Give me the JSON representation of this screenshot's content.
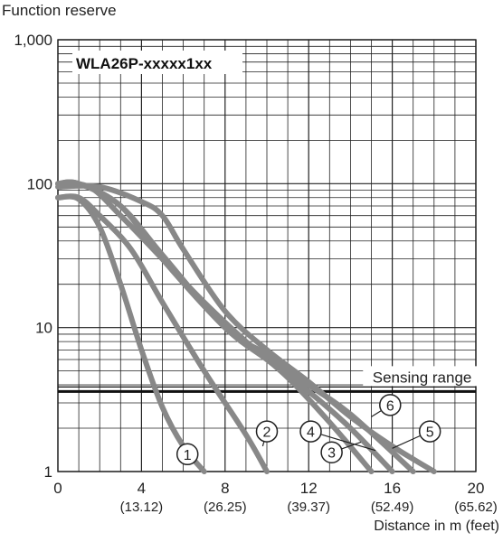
{
  "chart_data": {
    "type": "line",
    "model_label": "WLA26P-xxxxx1xx",
    "ylabel": "Function reserve",
    "xlabel": "Distance in m (feet)",
    "yscale": "log",
    "ylim": [
      1,
      1000
    ],
    "xlim": [
      0,
      20
    ],
    "y_ticks": [
      {
        "value": 1,
        "label": "1"
      },
      {
        "value": 10,
        "label": "10"
      },
      {
        "value": 100,
        "label": "100"
      },
      {
        "value": 1000,
        "label": "1,000"
      }
    ],
    "x_ticks": [
      {
        "value": 0,
        "label": "0",
        "sub": ""
      },
      {
        "value": 4,
        "label": "4",
        "sub": "(13.12)"
      },
      {
        "value": 8,
        "label": "8",
        "sub": "(26.25)"
      },
      {
        "value": 12,
        "label": "12",
        "sub": "(39.37)"
      },
      {
        "value": 16,
        "label": "16",
        "sub": "(52.49)"
      },
      {
        "value": 20,
        "label": "20",
        "sub": "(65.62)"
      }
    ],
    "grid": true,
    "threshold": {
      "label": "Sensing range",
      "value": 3.6
    },
    "series": [
      {
        "name": "1",
        "points": [
          [
            0,
            80
          ],
          [
            1,
            78
          ],
          [
            2,
            50
          ],
          [
            3,
            20
          ],
          [
            4,
            7
          ],
          [
            5,
            2.8
          ],
          [
            6,
            1.5
          ],
          [
            7,
            1
          ]
        ]
      },
      {
        "name": "2",
        "points": [
          [
            0,
            80
          ],
          [
            1,
            80
          ],
          [
            2,
            60
          ],
          [
            3.5,
            35
          ],
          [
            5,
            15
          ],
          [
            7,
            5
          ],
          [
            9,
            1.8
          ],
          [
            10,
            1
          ]
        ]
      },
      {
        "name": "3",
        "points": [
          [
            0,
            100
          ],
          [
            1.5,
            95
          ],
          [
            3,
            60
          ],
          [
            5,
            30
          ],
          [
            7,
            15
          ],
          [
            9,
            8
          ],
          [
            11,
            4.5
          ],
          [
            13,
            2.2
          ],
          [
            15,
            1
          ]
        ]
      },
      {
        "name": "4",
        "points": [
          [
            0,
            100
          ],
          [
            1,
            100
          ],
          [
            3,
            70
          ],
          [
            5,
            30
          ],
          [
            8,
            10
          ],
          [
            10,
            6
          ],
          [
            12,
            3.6
          ],
          [
            14,
            2
          ],
          [
            16,
            1
          ]
        ]
      },
      {
        "name": "5",
        "points": [
          [
            0,
            95
          ],
          [
            2,
            95
          ],
          [
            4,
            75
          ],
          [
            5,
            60
          ],
          [
            6,
            35
          ],
          [
            8,
            13
          ],
          [
            10,
            7
          ],
          [
            12,
            4.2
          ],
          [
            14,
            2.4
          ],
          [
            16,
            1.5
          ],
          [
            18,
            1
          ]
        ]
      },
      {
        "name": "6",
        "points": [
          [
            0,
            100
          ],
          [
            1,
            100
          ],
          [
            3,
            70
          ],
          [
            5,
            32
          ],
          [
            8,
            10
          ],
          [
            10,
            6.5
          ],
          [
            12,
            4
          ],
          [
            14,
            2.5
          ],
          [
            17,
            1
          ]
        ]
      }
    ],
    "callouts": [
      {
        "label": "1",
        "anchor": [
          6.2,
          1.5
        ],
        "circle": [
          6.2,
          1.32
        ]
      },
      {
        "label": "2",
        "anchor": [
          9.8,
          1.5
        ],
        "circle": [
          10.0,
          1.9
        ]
      },
      {
        "label": "3",
        "anchor": [
          14.5,
          1.6
        ],
        "circle": [
          13.1,
          1.36
        ]
      },
      {
        "label": "4",
        "anchor": [
          15.2,
          1.4
        ],
        "circle": [
          12.1,
          1.9
        ]
      },
      {
        "label": "5",
        "anchor": [
          16.0,
          1.45
        ],
        "circle": [
          17.8,
          1.9
        ]
      },
      {
        "label": "6",
        "anchor": [
          15.0,
          2.4
        ],
        "circle": [
          15.9,
          2.9
        ]
      }
    ]
  }
}
